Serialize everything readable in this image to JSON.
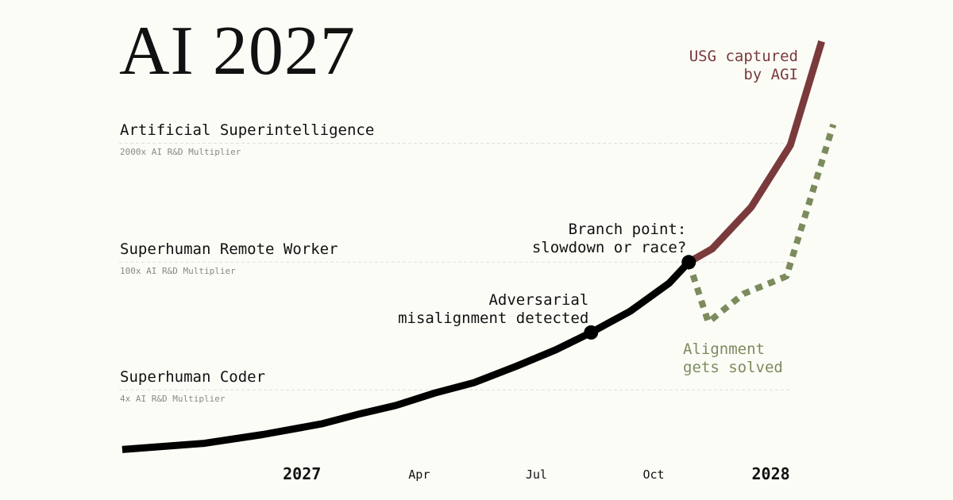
{
  "chart_data": {
    "type": "line",
    "title": "AI 2027",
    "log_y": true,
    "xlim": [
      -4.7,
      14.0
    ],
    "ylim": [
      0.75,
      30000
    ],
    "xticks": [
      {
        "value": 0,
        "label": "2027"
      },
      {
        "value": 3,
        "label": "Apr"
      },
      {
        "value": 6,
        "label": "Jul"
      },
      {
        "value": 9,
        "label": "Oct"
      },
      {
        "value": 12,
        "label": "2028"
      }
    ],
    "milestones": [
      {
        "name": "Artificial Superintelligence",
        "note": "2000x AI R&D Multiplier",
        "value": 2000
      },
      {
        "name": "Superhuman Remote Worker",
        "note": "100x AI R&D Multiplier",
        "value": 100
      },
      {
        "name": "Superhuman Coder",
        "note": "4x AI R&D Multiplier",
        "value": 4
      }
    ],
    "series": [
      {
        "color": "#000000",
        "dashed": false,
        "x": [
          -4.6,
          -2.5,
          -1.0,
          0.5,
          1.5,
          2.4,
          3.4,
          4.4,
          5.5,
          6.5,
          7.4,
          8.4,
          9.4,
          9.9
        ],
        "values": [
          0.89,
          1.04,
          1.3,
          1.7,
          2.2,
          2.7,
          3.7,
          4.8,
          7.3,
          11,
          17,
          29,
          59,
          100
        ]
      },
      {
        "name": "USG captured by AGI",
        "color": "#7a3a3c",
        "dashed": false,
        "x": [
          9.9,
          10.5,
          11.5,
          12.5,
          13.3
        ],
        "values": [
          100,
          140,
          400,
          1900,
          26000
        ]
      },
      {
        "name": "Alignment gets solved",
        "color": "#7b8b5d",
        "dashed": true,
        "x": [
          9.9,
          10.4,
          11.3,
          12.4,
          13.6
        ],
        "values": [
          100,
          22,
          45,
          70,
          3200
        ]
      }
    ],
    "annotations": [
      {
        "text": "Adversarial misalignment detected",
        "x": 7.4,
        "y": 17
      },
      {
        "text": "Branch point: slowdown or race?",
        "x": 9.9,
        "y": 100
      }
    ]
  }
}
